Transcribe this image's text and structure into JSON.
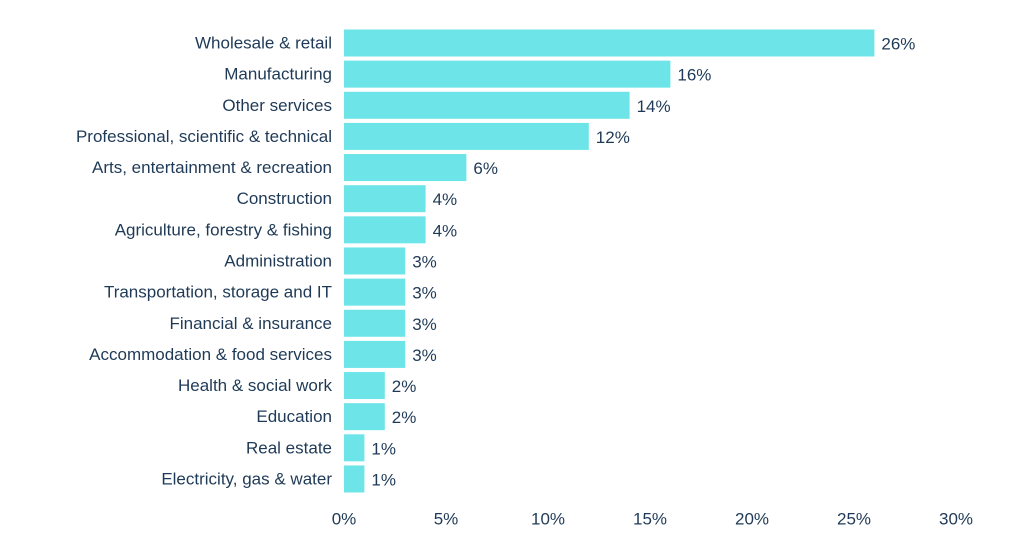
{
  "chart_data": {
    "type": "bar",
    "orientation": "horizontal",
    "title": "",
    "xlabel": "",
    "ylabel": "",
    "categories": [
      "Wholesale & retail",
      "Manufacturing",
      "Other services",
      "Professional, scientific & technical",
      "Arts, entertainment & recreation",
      "Construction",
      "Agriculture, forestry & fishing",
      "Administration",
      "Transportation, storage and IT",
      "Financial & insurance",
      "Accommodation & food services",
      "Health & social work",
      "Education",
      "Real estate",
      "Electricity, gas & water"
    ],
    "values": [
      26,
      16,
      14,
      12,
      6,
      4,
      4,
      3,
      3,
      3,
      3,
      2,
      2,
      1,
      1
    ],
    "value_labels": [
      "26%",
      "16%",
      "14%",
      "12%",
      "6%",
      "4%",
      "4%",
      "3%",
      "3%",
      "3%",
      "3%",
      "2%",
      "2%",
      "1%",
      "1%"
    ],
    "xlim": [
      0,
      30
    ],
    "ticks": [
      0,
      5,
      10,
      15,
      20,
      25,
      30
    ],
    "tick_labels": [
      "0%",
      "5%",
      "10%",
      "15%",
      "20%",
      "25%",
      "30%"
    ],
    "grid": false,
    "legend": "none",
    "bar_color": "#6ce4e8",
    "text_color": "#1f3a57"
  }
}
